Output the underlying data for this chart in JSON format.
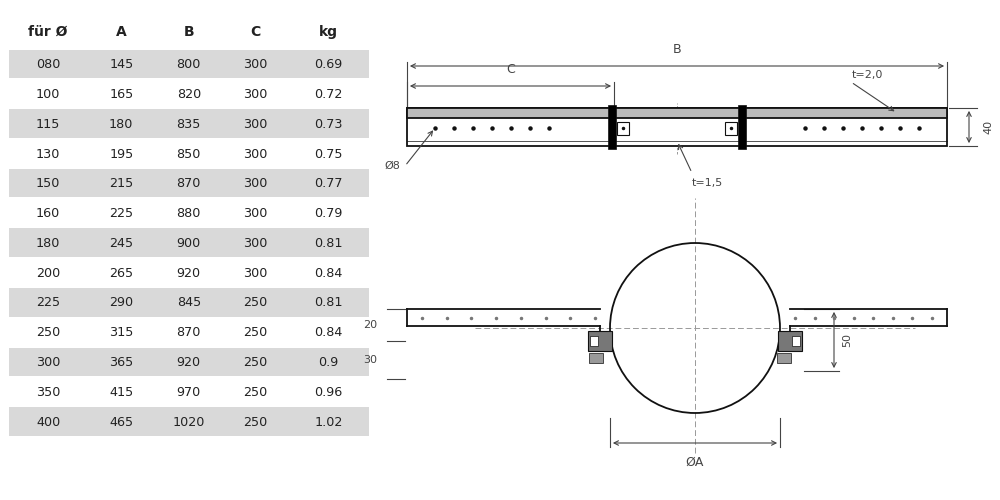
{
  "table_headers": [
    "für Ø",
    "A",
    "B",
    "C",
    "kg"
  ],
  "table_rows": [
    [
      "080",
      "145",
      "800",
      "300",
      "0.69"
    ],
    [
      "100",
      "165",
      "820",
      "300",
      "0.72"
    ],
    [
      "115",
      "180",
      "835",
      "300",
      "0.73"
    ],
    [
      "130",
      "195",
      "850",
      "300",
      "0.75"
    ],
    [
      "150",
      "215",
      "870",
      "300",
      "0.77"
    ],
    [
      "160",
      "225",
      "880",
      "300",
      "0.79"
    ],
    [
      "180",
      "245",
      "900",
      "300",
      "0.81"
    ],
    [
      "200",
      "265",
      "920",
      "300",
      "0.84"
    ],
    [
      "225",
      "290",
      "845",
      "250",
      "0.81"
    ],
    [
      "250",
      "315",
      "870",
      "250",
      "0.84"
    ],
    [
      "300",
      "365",
      "920",
      "250",
      "0.9"
    ],
    [
      "350",
      "415",
      "970",
      "250",
      "0.96"
    ],
    [
      "400",
      "465",
      "1020",
      "250",
      "1.02"
    ]
  ],
  "shaded_rows": [
    0,
    2,
    4,
    6,
    8,
    10,
    12
  ],
  "row_bg_shaded": "#d9d9d9",
  "row_bg_white": "#ffffff",
  "text_color": "#222222",
  "bg_color": "#ffffff",
  "line_color": "#111111",
  "dim_color": "#444444",
  "dot_color": "#222222"
}
